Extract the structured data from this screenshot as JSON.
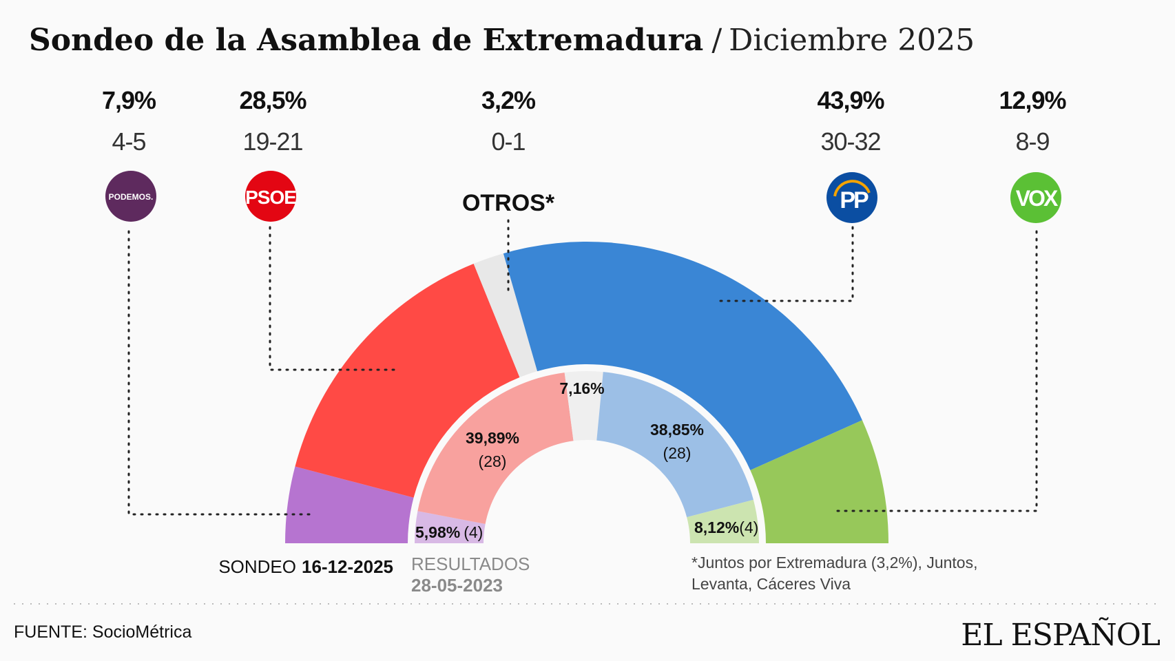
{
  "header": {
    "title": "Sondeo de la Asamblea de Extremadura",
    "separator": "/",
    "subtitle": "Diciembre 2025"
  },
  "chart_data": {
    "type": "pie",
    "shape": "semicircle-donut",
    "rings": [
      {
        "name": "SONDEO 16-12-2025",
        "segments": [
          {
            "party": "PODEMOS",
            "value": 7.9,
            "label": "7,9%",
            "seats": "4-5",
            "color": "#b674d0"
          },
          {
            "party": "PSOE",
            "value": 28.5,
            "label": "28,5%",
            "seats": "19-21",
            "color": "#ff4a45"
          },
          {
            "party": "OTROS*",
            "value": 3.2,
            "label": "3,2%",
            "seats": "0-1",
            "color": "#e8e8e8"
          },
          {
            "party": "PP",
            "value": 43.9,
            "label": "43,9%",
            "seats": "30-32",
            "color": "#3a86d5"
          },
          {
            "party": "VOX",
            "value": 12.9,
            "label": "12,9%",
            "seats": "8-9",
            "color": "#97c85a"
          }
        ]
      },
      {
        "name": "RESULTADOS 28-05-2023",
        "segments": [
          {
            "party": "PODEMOS",
            "value": 5.98,
            "label": "5,98%",
            "seats": "(4)",
            "color": "#d8b9e5"
          },
          {
            "party": "PSOE",
            "value": 39.89,
            "label": "39,89%",
            "seats": "(28)",
            "color": "#f8a19e"
          },
          {
            "party": "OTROS*",
            "value": 7.16,
            "label": "7,16%",
            "seats": "",
            "color": "#efefef"
          },
          {
            "party": "PP",
            "value": 38.85,
            "label": "38,85%",
            "seats": "(28)",
            "color": "#9cbfe6"
          },
          {
            "party": "VOX",
            "value": 8.12,
            "label": "8,12%",
            "seats": "(4)",
            "color": "#cce4b0"
          }
        ]
      }
    ]
  },
  "logos": {
    "podemos": "PODEMOS.",
    "psoe": "PSOE",
    "otros": "OTROS*",
    "pp": "PP",
    "vox": "VOX",
    "colors": {
      "podemos": "#5e2a5e",
      "psoe": "#e30613",
      "pp": "#0b4ea2",
      "vox": "#5bc035"
    }
  },
  "labels": {
    "sondeo_prefix": "SONDEO",
    "sondeo_date": "16-12-2025",
    "resultados": "RESULTADOS",
    "resultados_date": "28-05-2023",
    "footnote_line1": "*Juntos por Extremadura (3,2%), Juntos,",
    "footnote_line2": "Levanta, Cáceres Viva"
  },
  "footer": {
    "source": "FUENTE: SocioMétrica",
    "brand": "EL ESPAÑOL"
  }
}
